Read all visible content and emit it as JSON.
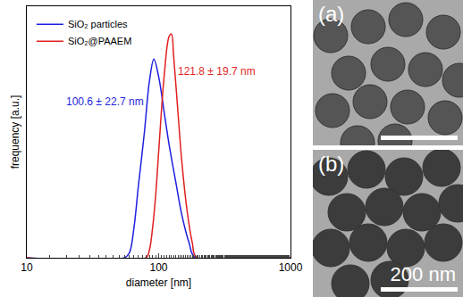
{
  "chart_data": {
    "type": "line",
    "x_label": "diameter [nm]",
    "y_label": "frequency [a.u.]",
    "log": "x",
    "grid": false,
    "legend": "upper left",
    "tick_labels": "x",
    "xlim": [
      10,
      1000
    ],
    "xticks": [
      10,
      100,
      1000
    ],
    "ylim": [
      0,
      1
    ],
    "series": [
      {
        "name": "SiO₂ particles",
        "color": "#1f1fe0",
        "x": [
          10,
          55,
          60,
          65,
          70,
          78,
          85,
          92,
          100,
          110,
          120,
          135,
          150,
          170,
          190,
          1000
        ],
        "values": [
          0,
          0,
          0.02,
          0.12,
          0.28,
          0.5,
          0.7,
          0.79,
          0.72,
          0.58,
          0.45,
          0.3,
          0.17,
          0.06,
          0,
          0
        ]
      },
      {
        "name": "SiO₂@PAAEM",
        "color": "#e01f1f",
        "x": [
          10,
          80,
          85,
          90,
          95,
          100,
          110,
          120,
          125,
          130,
          140,
          150,
          165,
          180,
          195,
          1000
        ],
        "values": [
          0,
          0,
          0.03,
          0.12,
          0.25,
          0.42,
          0.72,
          0.88,
          0.89,
          0.8,
          0.58,
          0.38,
          0.18,
          0.06,
          0,
          0
        ]
      }
    ],
    "annotations": [
      {
        "text": "100.6 ± 22.7 nm",
        "x": 80,
        "y": 0.62,
        "color": "#1f1fe0"
      },
      {
        "text": "121.8 ± 19.7 nm",
        "x": 135,
        "y": 0.74,
        "color": "#e01f1f"
      }
    ]
  },
  "panels": [
    {
      "label": "(a)"
    },
    {
      "label": "(b)",
      "scale_bar": "200 nm"
    }
  ]
}
